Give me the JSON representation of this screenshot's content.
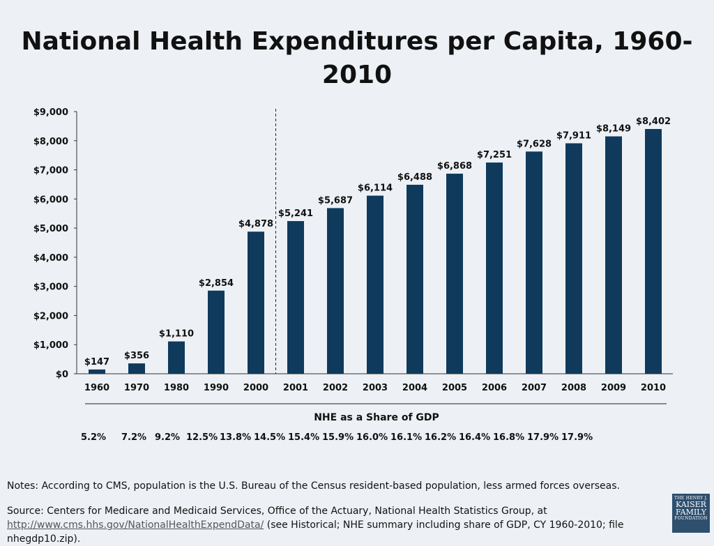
{
  "title": "National Health Expenditures per Capita, 1960-2010",
  "chart_data": {
    "type": "bar",
    "categories": [
      "1960",
      "1970",
      "1980",
      "1990",
      "2000",
      "2001",
      "2002",
      "2003",
      "2004",
      "2005",
      "2006",
      "2007",
      "2008",
      "2009",
      "2010"
    ],
    "values": [
      147,
      356,
      1110,
      2854,
      4878,
      5241,
      5687,
      6114,
      6488,
      6868,
      7251,
      7628,
      7911,
      8149,
      8402
    ],
    "value_labels": [
      "$147",
      "$356",
      "$1,110",
      "$2,854",
      "$4,878",
      "$5,241",
      "$5,687",
      "$6,114",
      "$6,488",
      "$6,868",
      "$7,251",
      "$7,628",
      "$7,911",
      "$8,149",
      "$8,402"
    ],
    "y_ticks": [
      "$0",
      "$1,000",
      "$2,000",
      "$3,000",
      "$4,000",
      "$5,000",
      "$6,000",
      "$7,000",
      "$8,000",
      "$9,000"
    ],
    "ylim": [
      0,
      9000
    ],
    "xlabel": "",
    "ylabel": "",
    "grid": false,
    "divider_after_category": "2000",
    "bar_color": "#0f3a5c"
  },
  "gdp": {
    "heading": "NHE as a Share of GDP",
    "values": [
      "5.2%",
      "7.2%",
      "9.2%",
      "12.5%",
      "13.8%",
      "14.5%",
      "15.4%",
      "15.9%",
      "16.0%",
      "16.1%",
      "16.2%",
      "16.4%",
      "16.8%",
      "17.9%",
      "17.9%"
    ]
  },
  "notes": "Notes: According to CMS, population is the U.S. Bureau of the Census resident-based population, less armed forces overseas.",
  "source": {
    "prefix": "Source: Centers for Medicare and Medicaid Services, Office of the Actuary, National Health Statistics Group, at",
    "link": "http://www.cms.hhs.gov/NationalHealthExpendData/",
    "suffix": "(see Historical; NHE summary including share of GDP, CY 1960-2010; file nhegdp10.zip)."
  },
  "logo": {
    "line1": "THE HENRY J.",
    "line2": "KAISER",
    "line3": "FAMILY",
    "line4": "FOUNDATION"
  }
}
